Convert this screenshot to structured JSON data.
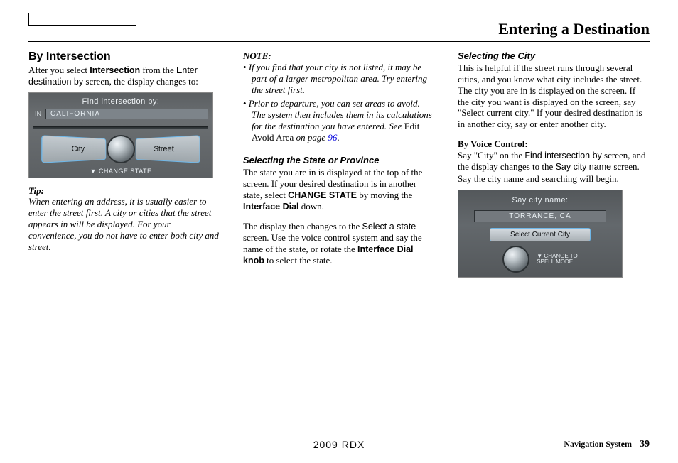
{
  "header": {
    "title": "Entering a Destination"
  },
  "col1": {
    "h2": "By Intersection",
    "intro_1a": "After you select ",
    "intro_1b": "Intersection",
    "intro_1c": " from the ",
    "intro_1d": "Enter destination by",
    "intro_1e": " screen, the display changes to:",
    "screen": {
      "title": "Find intersection by:",
      "in_label": "IN",
      "state": "CALIFORNIA",
      "btn_city": "City",
      "btn_street": "Street",
      "footer": "▼ CHANGE STATE"
    },
    "tip_label": "Tip:",
    "tip_body": "When entering an address, it is usually easier to enter the street first. A city or cities that the street appears in will be displayed. For your convenience, you do not have to enter both city and street."
  },
  "col2": {
    "note_label": "NOTE:",
    "note1": "If you find that your city is not listed, it may be part of a larger metropolitan area. Try entering the street first.",
    "note2a": "Prior to departure, you can set areas to avoid. The system then includes them in its calculations for the destination you have entered. See ",
    "note2b": "Edit Avoid Area",
    "note2c": " on page ",
    "note2d": "96",
    "note2e": ".",
    "h3a": "Selecting the State or Province",
    "p1a": "The state you are in is displayed at the top of the screen. If your desired destination is in another state, select ",
    "p1b": "CHANGE STATE",
    "p1c": " by moving the ",
    "p1d": "Interface Dial",
    "p1e": " down.",
    "p2a": "The display then changes to the ",
    "p2b": "Select a state",
    "p2c": " screen. Use the voice control system and say the name of the state, or rotate the ",
    "p2d": "Interface Dial knob",
    "p2e": " to select the state."
  },
  "col3": {
    "h3": "Selecting the City",
    "p1": "This is helpful if the street runs through several cities, and you know what city includes the street. The city you are in is displayed on the screen. If the city you want is displayed on the screen, say \"Select current city.\" If your desired destination is in another city, say or enter another city.",
    "vh": "By Voice Control:",
    "v1a": "Say \"City\" on the ",
    "v1b": "Find intersection by",
    "v1c": " screen, and the display changes to the ",
    "v1d": "Say city name",
    "v1e": " screen. Say the city name and searching will begin.",
    "screen": {
      "title": "Say city name:",
      "city": "TORRANCE, CA",
      "select": "Select Current City",
      "foot1": "▼ CHANGE TO",
      "foot2": "   SPELL MODE"
    }
  },
  "footer": {
    "center": "2009  RDX",
    "right_label": "Navigation System",
    "page": "39"
  }
}
